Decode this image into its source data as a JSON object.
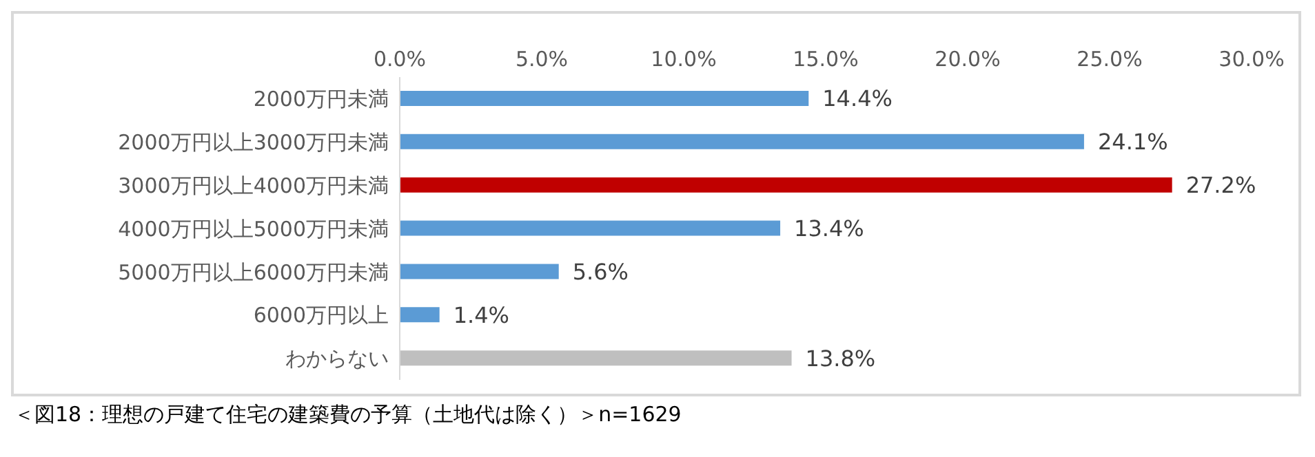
{
  "chart_data": {
    "type": "bar",
    "orientation": "horizontal",
    "categories": [
      "2000万円未満",
      "2000万円以上3000万円未満",
      "3000万円以上4000万円未満",
      "4000万円以上5000万円未満",
      "5000万円以上6000万円未満",
      "6000万円以上",
      "わからない"
    ],
    "values": [
      14.4,
      24.1,
      27.2,
      13.4,
      5.6,
      1.4,
      13.8
    ],
    "colors": [
      "#5b9bd5",
      "#5b9bd5",
      "#c00000",
      "#5b9bd5",
      "#5b9bd5",
      "#5b9bd5",
      "#bfbfbf"
    ],
    "value_labels": [
      "14.4%",
      "24.1%",
      "27.2%",
      "13.4%",
      "5.6%",
      "1.4%",
      "13.8%"
    ],
    "xlim": [
      0,
      30
    ],
    "xticks": [
      {
        "value": 0,
        "label": "0.0%"
      },
      {
        "value": 5,
        "label": "5.0%"
      },
      {
        "value": 10,
        "label": "10.0%"
      },
      {
        "value": 15,
        "label": "15.0%"
      },
      {
        "value": 20,
        "label": "20.0%"
      },
      {
        "value": 25,
        "label": "25.0%"
      },
      {
        "value": 30,
        "label": "30.0%"
      }
    ],
    "grid": false,
    "legend": false,
    "annotations": [
      "＜図18：理想の戸建て住宅の建築費の予算（土地代は除く）＞n=1629"
    ]
  }
}
